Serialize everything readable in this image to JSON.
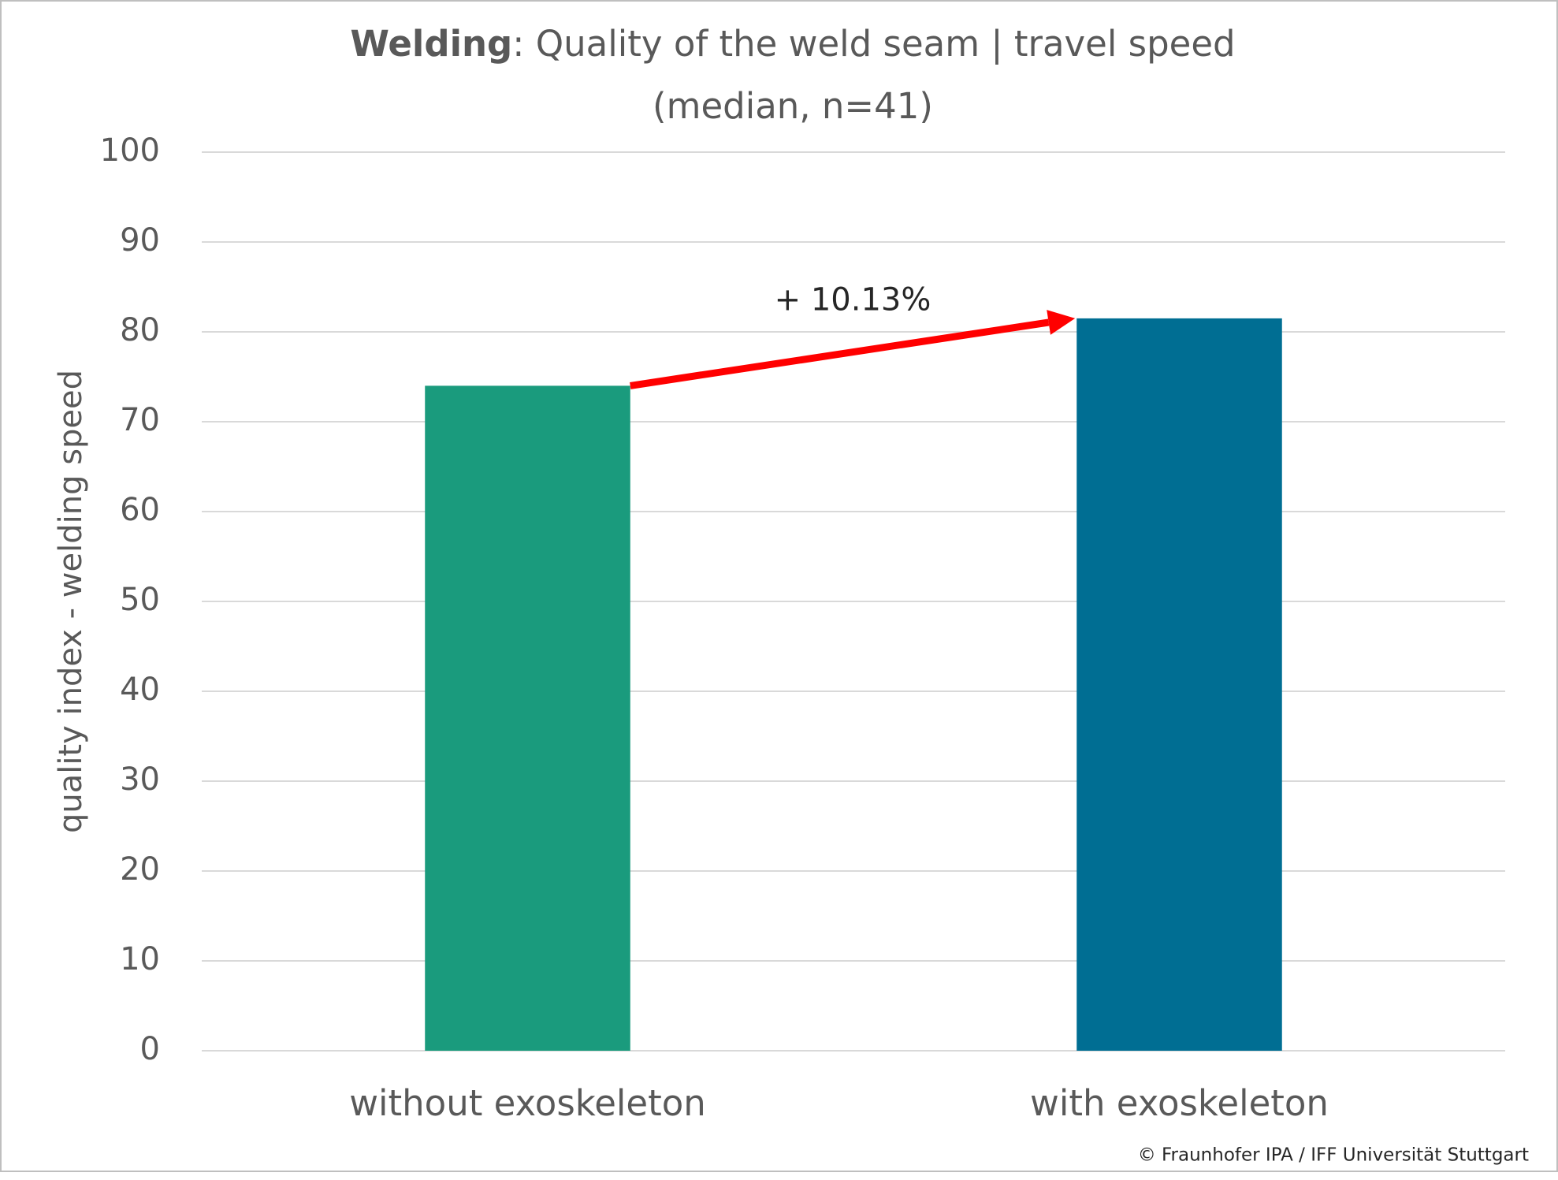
{
  "chart_data": {
    "type": "bar",
    "title_parts": [
      "Welding",
      ": Quality of the weld seam | travel speed"
    ],
    "subtitle": "(median, n=41)",
    "y_label": "quality index - welding speed",
    "annotation": "+ 10.13%",
    "source": "© Fraunhofer IPA / IFF Universität Stuttgart",
    "categories": [
      "without exoskeleton",
      "with exoskeleton"
    ],
    "values": [
      74,
      81.5
    ],
    "colors": [
      "#1a9b7d",
      "#006e93"
    ],
    "arrow_color": "#ff0000",
    "ylim": [
      0,
      100
    ],
    "yticks": [
      0,
      10,
      20,
      30,
      40,
      50,
      60,
      70,
      80,
      90,
      100
    ],
    "grid": true
  }
}
